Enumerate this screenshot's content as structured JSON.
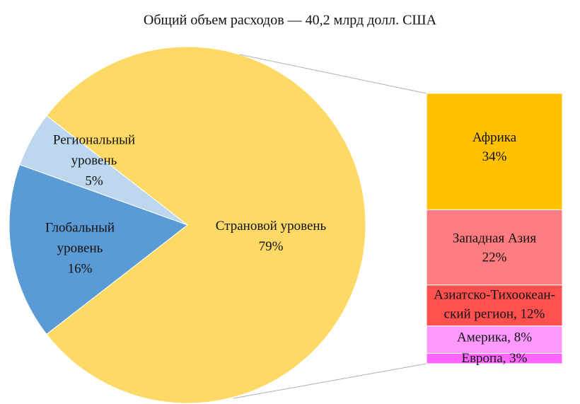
{
  "chart_data": {
    "type": "pie",
    "title": "Общий объем расходов — 40,2 млрд долл. США",
    "labels": [
      [
        "Страновой уровень",
        "79%"
      ],
      [
        "Глобальный",
        "уровень",
        "16%"
      ],
      [
        "Региональный",
        "уровень",
        "5%"
      ]
    ],
    "values": [
      79,
      16,
      5
    ],
    "colors": [
      "#ffd966",
      "#5b9bd5",
      "#bdd7ee"
    ],
    "breakdown": {
      "labels": [
        [
          "Африка",
          "34%"
        ],
        [
          "Западная Азия",
          "22%"
        ],
        [
          "Азиатско-Тихоокеан-",
          "ский регион, 12%"
        ],
        [
          "Америка, 8%"
        ],
        [
          "Европа, 3%"
        ]
      ],
      "values": [
        34,
        22,
        12,
        8,
        3
      ],
      "colors": [
        "#ffc000",
        "#ff7c80",
        "#ff5050",
        "#ff99ff",
        "#ff66ff"
      ]
    }
  }
}
